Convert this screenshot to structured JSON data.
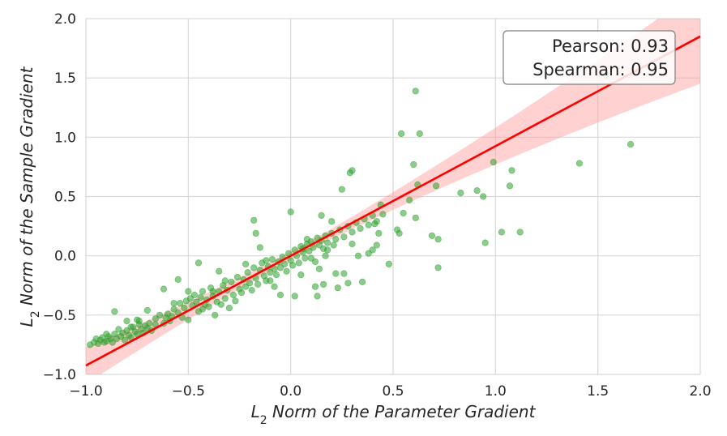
{
  "chart_data": {
    "type": "scatter",
    "xlabel_prefix": "L",
    "xlabel_sub": "2",
    "xlabel_rest": " Norm of the Parameter Gradient",
    "ylabel_prefix": "L",
    "ylabel_sub": "2",
    "ylabel_rest": " Norm of the Sample Gradient",
    "xlim": [
      -1.0,
      2.0
    ],
    "ylim": [
      -1.0,
      2.0
    ],
    "xticks": [
      "−1.0",
      "−0.5",
      "0.0",
      "0.5",
      "1.0",
      "1.5",
      "2.0"
    ],
    "yticks": [
      "−1.0",
      "−0.5",
      "0.0",
      "0.5",
      "1.0",
      "1.5",
      "2.0"
    ],
    "grid": true,
    "annotation": {
      "line1": "Pearson: 0.93",
      "line2": "Spearman: 0.95",
      "placement": "top-right"
    },
    "regression": {
      "slope": 0.925,
      "intercept": 0.0,
      "color": "#ff0000",
      "band_color": "#ff9999"
    },
    "point_color": "#2ca02c",
    "points": [
      [
        -0.98,
        -0.75
      ],
      [
        -0.96,
        -0.73
      ],
      [
        -0.95,
        -0.7
      ],
      [
        -0.94,
        -0.74
      ],
      [
        -0.93,
        -0.71
      ],
      [
        -0.92,
        -0.69
      ],
      [
        -0.91,
        -0.73
      ],
      [
        -0.9,
        -0.72
      ],
      [
        -0.89,
        -0.68
      ],
      [
        -0.88,
        -0.7
      ],
      [
        -0.87,
        -0.73
      ],
      [
        -0.86,
        -0.66
      ],
      [
        -0.85,
        -0.7
      ],
      [
        -0.84,
        -0.62
      ],
      [
        -0.83,
        -0.68
      ],
      [
        -0.82,
        -0.65
      ],
      [
        -0.81,
        -0.71
      ],
      [
        -0.8,
        -0.63
      ],
      [
        -0.79,
        -0.67
      ],
      [
        -0.78,
        -0.69
      ],
      [
        -0.77,
        -0.6
      ],
      [
        -0.76,
        -0.64
      ],
      [
        -0.75,
        -0.66
      ],
      [
        -0.74,
        -0.58
      ],
      [
        -0.73,
        -0.62
      ],
      [
        -0.72,
        -0.65
      ],
      [
        -0.71,
        -0.59
      ],
      [
        -0.7,
        -0.61
      ],
      [
        -0.69,
        -0.57
      ],
      [
        -0.68,
        -0.63
      ],
      [
        -0.86,
        -0.47
      ],
      [
        -0.8,
        -0.55
      ],
      [
        -0.74,
        -0.55
      ],
      [
        -0.7,
        -0.46
      ],
      [
        -0.66,
        -0.53
      ],
      [
        -0.64,
        -0.5
      ],
      [
        -0.62,
        -0.57
      ],
      [
        -0.61,
        -0.52
      ],
      [
        -0.6,
        -0.49
      ],
      [
        -0.59,
        -0.55
      ],
      [
        -0.58,
        -0.51
      ],
      [
        -0.57,
        -0.45
      ],
      [
        -0.55,
        -0.48
      ],
      [
        -0.54,
        -0.4
      ],
      [
        -0.53,
        -0.52
      ],
      [
        -0.52,
        -0.44
      ],
      [
        -0.51,
        -0.38
      ],
      [
        -0.5,
        -0.54
      ],
      [
        -0.49,
        -0.36
      ],
      [
        -0.48,
        -0.42
      ],
      [
        -0.47,
        -0.33
      ],
      [
        -0.46,
        -0.39
      ],
      [
        -0.45,
        -0.47
      ],
      [
        -0.44,
        -0.35
      ],
      [
        -0.43,
        -0.3
      ],
      [
        -0.42,
        -0.41
      ],
      [
        -0.41,
        -0.37
      ],
      [
        -0.4,
        -0.43
      ],
      [
        -0.39,
        -0.27
      ],
      [
        -0.38,
        -0.34
      ],
      [
        -0.37,
        -0.5
      ],
      [
        -0.36,
        -0.39
      ],
      [
        -0.35,
        -0.3
      ],
      [
        -0.34,
        -0.41
      ],
      [
        -0.33,
        -0.25
      ],
      [
        -0.32,
        -0.36
      ],
      [
        -0.31,
        -0.29
      ],
      [
        -0.3,
        -0.44
      ],
      [
        -0.29,
        -0.22
      ],
      [
        -0.28,
        -0.33
      ],
      [
        -0.27,
        -0.38
      ],
      [
        -0.26,
        -0.18
      ],
      [
        -0.25,
        -0.28
      ],
      [
        -0.24,
        -0.31
      ],
      [
        -0.23,
        -0.2
      ],
      [
        -0.22,
        -0.26
      ],
      [
        -0.21,
        -0.14
      ],
      [
        -0.2,
        -0.23
      ],
      [
        -0.19,
        -0.29
      ],
      [
        -0.18,
        -0.1
      ],
      [
        -0.17,
        -0.19
      ],
      [
        -0.16,
        -0.24
      ],
      [
        -0.15,
        -0.12
      ],
      [
        -0.14,
        -0.06
      ],
      [
        -0.13,
        -0.17
      ],
      [
        -0.12,
        -0.21
      ],
      [
        -0.11,
        -0.09
      ],
      [
        -0.1,
        -0.14
      ],
      [
        -0.09,
        -0.03
      ],
      [
        -0.08,
        -0.11
      ],
      [
        -0.07,
        -0.16
      ],
      [
        -0.06,
        -0.05
      ],
      [
        -0.05,
        -0.1
      ],
      [
        -0.04,
        -0.01
      ],
      [
        -0.03,
        -0.07
      ],
      [
        -0.02,
        -0.13
      ],
      [
        -0.01,
        0.02
      ],
      [
        0.0,
        -0.04
      ],
      [
        0.01,
        -0.08
      ],
      [
        0.02,
        0.05
      ],
      [
        0.03,
        0.0
      ],
      [
        0.04,
        -0.06
      ],
      [
        0.05,
        0.08
      ],
      [
        0.06,
        0.03
      ],
      [
        0.07,
        -0.02
      ],
      [
        0.08,
        0.1
      ],
      [
        0.09,
        0.04
      ],
      [
        0.1,
        0.12
      ],
      [
        0.11,
        0.07
      ],
      [
        0.12,
        -0.05
      ],
      [
        0.13,
        0.15
      ],
      [
        0.14,
        0.09
      ],
      [
        0.15,
        0.13
      ],
      [
        0.16,
        0.06
      ],
      [
        0.17,
        0.17
      ],
      [
        0.18,
        0.11
      ],
      [
        0.2,
        0.19
      ],
      [
        0.22,
        0.14
      ],
      [
        0.24,
        0.22
      ],
      [
        0.26,
        0.16
      ],
      [
        0.28,
        0.25
      ],
      [
        0.3,
        0.2
      ],
      [
        0.32,
        0.28
      ],
      [
        0.34,
        0.23
      ],
      [
        0.36,
        0.31
      ],
      [
        0.38,
        0.26
      ],
      [
        0.4,
        0.34
      ],
      [
        0.42,
        0.29
      ],
      [
        -0.75,
        -0.54
      ],
      [
        -0.62,
        -0.28
      ],
      [
        -0.55,
        -0.2
      ],
      [
        -0.45,
        -0.06
      ],
      [
        -0.35,
        -0.13
      ],
      [
        -0.32,
        -0.21
      ],
      [
        -0.18,
        0.3
      ],
      [
        -0.17,
        0.19
      ],
      [
        -0.15,
        0.07
      ],
      [
        -0.12,
        -0.04
      ],
      [
        -0.08,
        -0.26
      ],
      [
        -0.05,
        -0.33
      ],
      [
        0.0,
        0.37
      ],
      [
        0.02,
        -0.34
      ],
      [
        0.05,
        -0.16
      ],
      [
        0.06,
        0.06
      ],
      [
        0.1,
        -0.02
      ],
      [
        0.12,
        -0.26
      ],
      [
        0.13,
        -0.34
      ],
      [
        0.15,
        0.34
      ],
      [
        0.16,
        -0.24
      ],
      [
        0.17,
        0.0
      ],
      [
        0.18,
        0.05
      ],
      [
        0.2,
        0.29
      ],
      [
        0.22,
        -0.15
      ],
      [
        0.23,
        -0.27
      ],
      [
        0.25,
        0.56
      ],
      [
        0.26,
        -0.15
      ],
      [
        0.28,
        -0.23
      ],
      [
        0.29,
        0.7
      ],
      [
        0.3,
        0.72
      ],
      [
        0.3,
        0.1
      ],
      [
        0.33,
        0.0
      ],
      [
        0.35,
        -0.22
      ],
      [
        0.38,
        0.02
      ],
      [
        0.4,
        0.05
      ],
      [
        0.41,
        0.27
      ],
      [
        0.42,
        0.09
      ],
      [
        0.43,
        0.19
      ],
      [
        0.44,
        0.43
      ],
      [
        0.45,
        0.35
      ],
      [
        0.48,
        -0.07
      ],
      [
        0.52,
        0.22
      ],
      [
        0.53,
        0.19
      ],
      [
        0.54,
        1.03
      ],
      [
        0.55,
        0.36
      ],
      [
        0.58,
        0.47
      ],
      [
        0.6,
        0.77
      ],
      [
        0.61,
        1.39
      ],
      [
        0.61,
        0.32
      ],
      [
        0.62,
        0.6
      ],
      [
        0.63,
        1.03
      ],
      [
        0.69,
        0.17
      ],
      [
        0.71,
        0.59
      ],
      [
        0.72,
        0.14
      ],
      [
        0.72,
        -0.1
      ],
      [
        0.83,
        0.53
      ],
      [
        0.91,
        0.55
      ],
      [
        0.94,
        0.5
      ],
      [
        0.95,
        0.11
      ],
      [
        0.99,
        0.79
      ],
      [
        1.03,
        0.2
      ],
      [
        1.07,
        0.59
      ],
      [
        1.08,
        0.72
      ],
      [
        1.12,
        0.2
      ],
      [
        1.41,
        0.78
      ],
      [
        1.54,
        1.52
      ],
      [
        1.66,
        0.94
      ],
      [
        -0.9,
        -0.66
      ],
      [
        -0.78,
        -0.6
      ],
      [
        -0.66,
        -0.58
      ],
      [
        -0.57,
        -0.4
      ],
      [
        -0.5,
        -0.3
      ],
      [
        -0.43,
        -0.45
      ],
      [
        -0.38,
        -0.3
      ],
      [
        -0.22,
        -0.07
      ],
      [
        -0.1,
        -0.21
      ],
      [
        0.08,
        0.14
      ],
      [
        0.14,
        -0.11
      ],
      [
        0.21,
        0.09
      ]
    ]
  }
}
